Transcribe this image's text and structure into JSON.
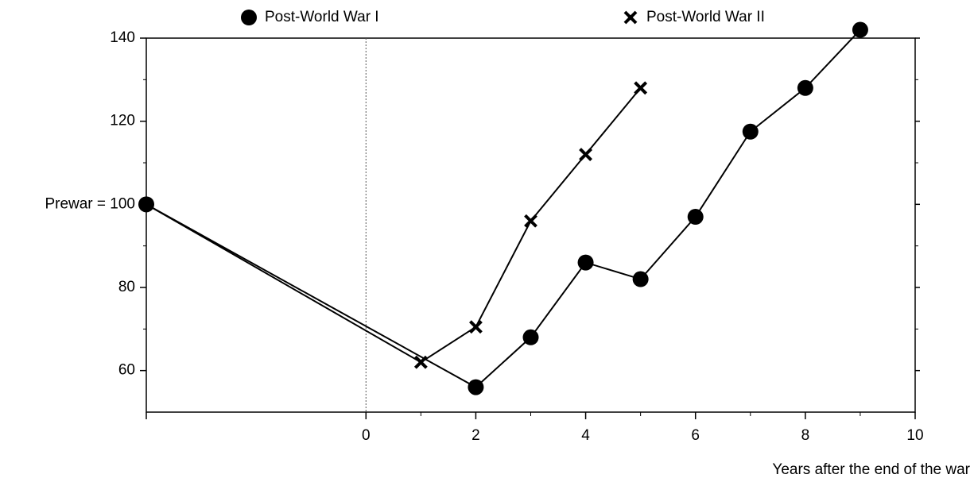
{
  "chart_data": {
    "type": "line",
    "xlabel": "Years after the end of the war",
    "xlim": [
      -4,
      10
    ],
    "xticks": [
      0,
      2,
      4,
      6,
      8,
      10
    ],
    "ylim": [
      50,
      140
    ],
    "yticks": [
      60,
      80,
      {
        "value": 100,
        "label": "Prewar = 100"
      },
      120,
      140
    ],
    "vline": 0,
    "series": [
      {
        "name": "Post-World War I",
        "marker": "circle",
        "color": "#000000",
        "x": [
          -4,
          2,
          3,
          4,
          5,
          6,
          7,
          8,
          9
        ],
        "values": [
          100,
          56,
          68,
          86,
          82,
          97,
          117.5,
          128,
          142
        ]
      },
      {
        "name": "Post-World War II",
        "marker": "cross",
        "color": "#000000",
        "x": [
          -4,
          1,
          2,
          3,
          4,
          5
        ],
        "values": [
          100,
          62,
          70.5,
          96,
          112,
          128
        ]
      }
    ]
  }
}
